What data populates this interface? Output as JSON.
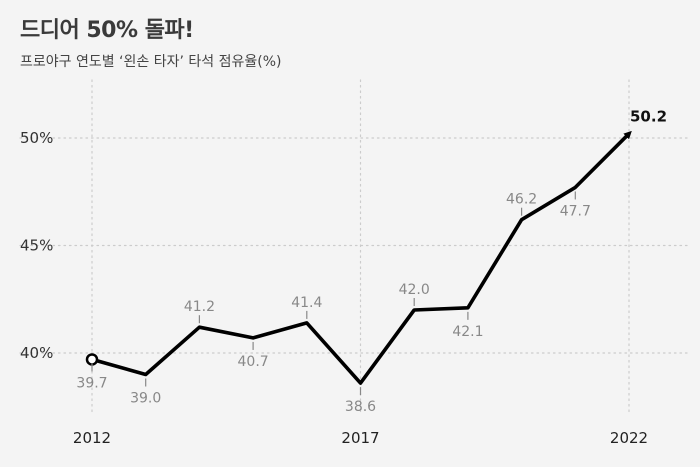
{
  "chart_data": {
    "type": "line",
    "title": "드디어 50% 돌파!",
    "subtitle": "프로야구 연도별 ‘왼손 타자’ 타석 점유율(%)",
    "xlabel": "",
    "ylabel": "",
    "x": [
      2012,
      2013,
      2014,
      2015,
      2016,
      2017,
      2018,
      2019,
      2020,
      2021,
      2022
    ],
    "values": [
      39.7,
      39.0,
      41.2,
      40.7,
      41.4,
      38.6,
      42.0,
      42.1,
      46.2,
      47.7,
      50.2
    ],
    "data_labels": [
      "39.7",
      "39.0",
      "41.2",
      "40.7",
      "41.4",
      "38.6",
      "42.0",
      "42.1",
      "46.2",
      "47.7",
      "50.2"
    ],
    "label_position": [
      "below",
      "below",
      "above",
      "below",
      "above",
      "below",
      "above",
      "below",
      "above",
      "below",
      "above"
    ],
    "xticks": [
      2012,
      2017,
      2022
    ],
    "xtick_labels": [
      "2012",
      "2017",
      "2022"
    ],
    "yticks": [
      40,
      45,
      50
    ],
    "ytick_labels": [
      "40%",
      "45%",
      "50%"
    ],
    "xlim": [
      2011,
      2023
    ],
    "ylim": [
      37.5,
      52.5
    ],
    "grid": true,
    "legend": "none",
    "colors": {
      "line": "#000000",
      "grid": "#cccccc",
      "label": "#888888",
      "background": "#f4f4f4"
    }
  }
}
